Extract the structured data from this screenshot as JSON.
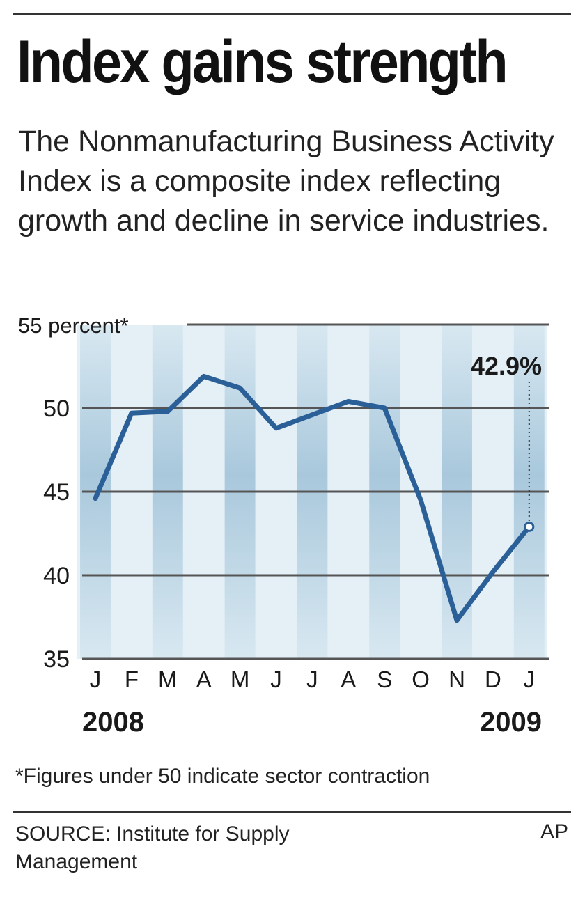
{
  "headline": "Index gains strength",
  "description": "The Nonmanufacturing Business Activity Index is a composite index reflecting growth and decline in service industries.",
  "footnote": "*Figures under 50 indicate sector contraction",
  "source": "SOURCE: Institute for Supply Management",
  "credit": "AP",
  "colors": {
    "line": "#2b5f97",
    "band": "#c3dbe9",
    "text": "#1a1a1a",
    "grid": "#555555"
  },
  "chart_data": {
    "type": "line",
    "ylabel": "55 percent*",
    "ylim": [
      35,
      55
    ],
    "yticks": [
      35,
      40,
      45,
      50,
      55
    ],
    "ytick_labels": [
      "35",
      "40",
      "45",
      "50",
      "55 percent*"
    ],
    "categories": [
      "J",
      "F",
      "M",
      "A",
      "M",
      "J",
      "J",
      "A",
      "S",
      "O",
      "N",
      "D",
      "J"
    ],
    "year_labels": [
      "2008",
      "2009"
    ],
    "values": [
      44.6,
      49.7,
      49.8,
      51.9,
      51.2,
      48.8,
      49.6,
      50.4,
      50.0,
      44.5,
      37.3,
      40.2,
      42.9
    ],
    "annotation": "42.9%",
    "grid": true
  }
}
